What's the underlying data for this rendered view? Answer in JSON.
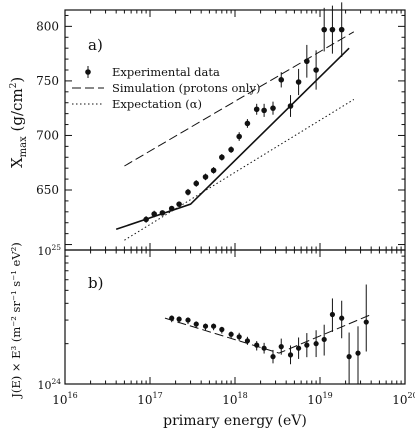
{
  "chart_data": [
    {
      "panel_label": "a)",
      "type": "scatter",
      "xscale": "log",
      "xlim": [
        1e+16,
        1e+20
      ],
      "ylim": [
        595,
        815
      ],
      "ylabel_main": "X",
      "ylabel_sub": "max",
      "ylabel_tail": " (g/cm",
      "ylabel_sup": "2",
      "ylabel_end": ")",
      "yticks": [
        650,
        700,
        750,
        800
      ],
      "ytick_labels": [
        "650",
        "700",
        "750",
        "800"
      ],
      "legend": {
        "position": "top-left",
        "entries": [
          {
            "label": "Experimental data",
            "style": "marker"
          },
          {
            "label": "Simulation (protons only)",
            "style": "dashed"
          },
          {
            "label": "Expectation (α)",
            "style": "dotted"
          }
        ]
      },
      "series": [
        {
          "name": "Experimental data",
          "kind": "points",
          "x": [
            9e+16,
            1.12e+17,
            1.4e+17,
            1.8e+17,
            2.2e+17,
            2.8e+17,
            3.5e+17,
            4.5e+17,
            5.6e+17,
            7e+17,
            9e+17,
            1.12e+18,
            1.4e+18,
            1.8e+18,
            2.2e+18,
            2.8e+18,
            3.5e+18,
            4.5e+18,
            5.6e+18,
            7e+18,
            9e+18,
            1.12e+19,
            1.4e+19,
            1.8e+19
          ],
          "y": [
            623,
            628,
            629,
            633,
            637,
            648,
            656,
            662,
            668,
            680,
            687,
            699,
            711,
            724,
            723,
            725,
            751,
            727,
            749,
            768,
            760,
            797,
            797,
            797
          ],
          "err": [
            3,
            3,
            2,
            2,
            2,
            3,
            3,
            3,
            3,
            3,
            3,
            4,
            4,
            5,
            6,
            6,
            7,
            10,
            12,
            15,
            18,
            20,
            22,
            25
          ]
        },
        {
          "name": "Simulation (protons only)",
          "kind": "line",
          "style": "dashed",
          "x": [
            5e+16,
            2.5e+19
          ],
          "y": [
            672,
            795
          ]
        },
        {
          "name": "Expectation (α)",
          "kind": "line",
          "style": "dotted",
          "x": [
            5e+16,
            2.5e+19
          ],
          "y": [
            604,
            733
          ]
        },
        {
          "name": "fit",
          "kind": "line",
          "style": "solid",
          "x": [
            4e+16,
            3e+17,
            2.2e+19
          ],
          "y": [
            614,
            637,
            780
          ]
        }
      ]
    },
    {
      "panel_label": "b)",
      "type": "scatter",
      "xscale": "log",
      "yscale": "log",
      "xlim": [
        1e+16,
        1e+20
      ],
      "ylim": [
        1e+24,
        1e+25
      ],
      "xlabel": "primary energy (eV)",
      "xticks": [
        1e+16,
        1e+17,
        1e+18,
        1e+19,
        1e+20
      ],
      "xtick_labels": [
        {
          "base": "10",
          "exp": "16"
        },
        {
          "base": "10",
          "exp": "17"
        },
        {
          "base": "10",
          "exp": "18"
        },
        {
          "base": "10",
          "exp": "19"
        },
        {
          "base": "10",
          "exp": "20"
        }
      ],
      "ytick_labels": [
        {
          "base": "10",
          "exp": "24"
        },
        {
          "base": "10",
          "exp": "25"
        }
      ],
      "ylabel": "J(E) × E³ (m⁻² sr⁻¹ s⁻¹ eV²)",
      "series": [
        {
          "name": "J(E)×E³ data",
          "kind": "points",
          "x": [
            1.8e+17,
            2.2e+17,
            2.8e+17,
            3.5e+17,
            4.5e+17,
            5.6e+17,
            7e+17,
            9e+17,
            1.12e+18,
            1.4e+18,
            1.8e+18,
            2.2e+18,
            2.8e+18,
            3.5e+18,
            4.5e+18,
            5.6e+18,
            7e+18,
            9e+18,
            1.12e+19,
            1.4e+19,
            1.8e+19,
            2.2e+19,
            2.8e+19,
            3.5e+19
          ],
          "y": [
            3.1e+24,
            3.05e+24,
            3e+24,
            2.8e+24,
            2.7e+24,
            2.7e+24,
            2.55e+24,
            2.35e+24,
            2.25e+24,
            2.1e+24,
            1.95e+24,
            1.85e+24,
            1.6e+24,
            1.9e+24,
            1.65e+24,
            1.85e+24,
            1.95e+24,
            2e+24,
            2.15e+24,
            3.3e+24,
            3.1e+24,
            1.6e+24,
            1.7e+24,
            2.9e+24
          ],
          "err_lo": [
            0.03,
            0.03,
            0.03,
            0.03,
            0.03,
            0.03,
            0.03,
            0.03,
            0.03,
            0.03,
            0.04,
            0.04,
            0.05,
            0.06,
            0.07,
            0.08,
            0.09,
            0.1,
            0.12,
            0.13,
            0.15,
            0.26,
            0.26,
            0.22
          ],
          "err_hi": [
            0.02,
            0.02,
            0.02,
            0.02,
            0.02,
            0.02,
            0.02,
            0.02,
            0.03,
            0.03,
            0.03,
            0.04,
            0.05,
            0.06,
            0.07,
            0.08,
            0.09,
            0.1,
            0.11,
            0.12,
            0.13,
            0.18,
            0.2,
            0.28
          ]
        },
        {
          "name": "fit",
          "kind": "line",
          "style": "dashed",
          "x": [
            1.5e+17,
            3.3e+18,
            4e+19
          ],
          "y": [
            3.1e+24,
            1.7e+24,
            3.3e+24
          ]
        }
      ]
    }
  ]
}
